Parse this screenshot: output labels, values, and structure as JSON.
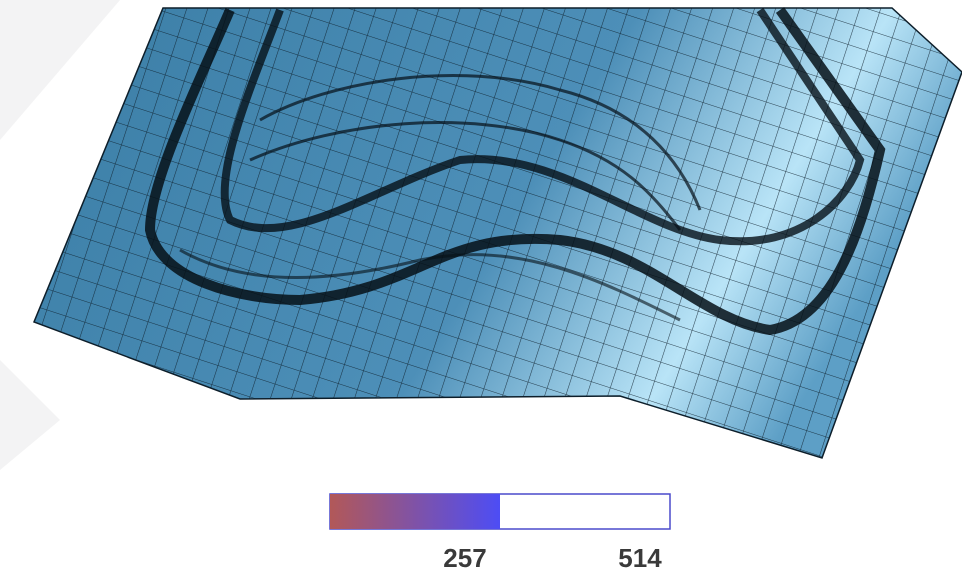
{
  "legend": {
    "value": 257,
    "max": 514
  }
}
